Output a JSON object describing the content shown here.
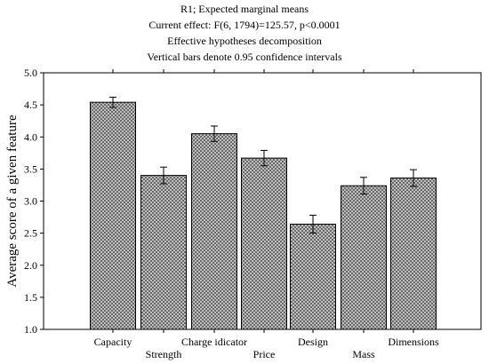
{
  "chart_data": {
    "type": "bar",
    "title": "R1; Expected marginal means",
    "subtitle_lines": [
      "Current effect: F(6, 1794)=125.57, p<0.0001",
      "Effective hypotheses decomposition",
      "Vertical bars denote 0.95 confidence intervals"
    ],
    "xlabel": "",
    "ylabel": "Average score of a given feature",
    "ylim": [
      1.0,
      5.0
    ],
    "yticks": [
      1.0,
      1.5,
      2.0,
      2.5,
      3.0,
      3.5,
      4.0,
      4.5,
      5.0
    ],
    "ytick_labels": [
      "1.0",
      "1.5",
      "2.0",
      "2.5",
      "3.0",
      "3.5",
      "4.0",
      "4.5",
      "5.0"
    ],
    "categories": [
      "Capacity",
      "Strength",
      "Charge idicator",
      "Price",
      "Design",
      "Mass",
      "Dimensions"
    ],
    "values": [
      4.54,
      3.4,
      4.05,
      3.67,
      2.64,
      3.24,
      3.36
    ],
    "ci_low": [
      4.46,
      3.27,
      3.93,
      3.55,
      2.5,
      3.11,
      3.23
    ],
    "ci_high": [
      4.62,
      3.53,
      4.17,
      3.79,
      2.78,
      3.37,
      3.49
    ],
    "grid": false,
    "bar_pattern": "crosshatch",
    "colors": {
      "bar_fill": "#d4d4d4",
      "hatch": "#555555",
      "bar_edge": "#000000",
      "axis": "#000000"
    }
  }
}
